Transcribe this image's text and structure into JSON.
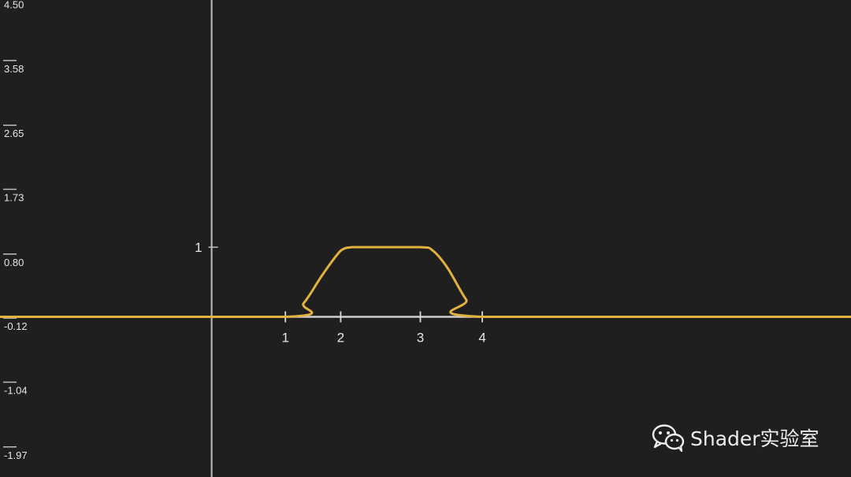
{
  "chart_data": {
    "type": "line",
    "title": "",
    "xlabel": "",
    "ylabel": "",
    "y_tick_labels": [
      "4.50",
      "3.58",
      "2.65",
      "1.73",
      "0.80",
      "-0.12",
      "-1.04",
      "-1.97"
    ],
    "y_tick_values": [
      4.5,
      3.58,
      2.65,
      1.73,
      0.8,
      -0.12,
      -1.04,
      -1.97
    ],
    "inner_y_tick_label": "1",
    "inner_y_tick_value": 1,
    "x_tick_labels": [
      "1",
      "2",
      "3",
      "4"
    ],
    "x_tick_values": [
      1,
      1.75,
      2.83,
      3.67
    ],
    "xlim": [
      -2.87,
      8.67
    ],
    "ylim": [
      -2.3,
      4.55
    ],
    "series": [
      {
        "color": "#e2b23e",
        "x": [
          -2.87,
          1.0,
          1.25,
          1.5,
          1.75,
          1.9,
          2.1,
          2.83,
          3.0,
          3.2,
          3.45,
          3.67,
          8.67
        ],
        "y": [
          0,
          0,
          0.2,
          0.6,
          0.95,
          1,
          1,
          1,
          0.95,
          0.7,
          0.25,
          0,
          0
        ]
      }
    ],
    "grid": false
  },
  "colors": {
    "background": "#1f1f1f",
    "axis": "#bfbfbf",
    "curve": "#e2b23e",
    "segment": "#cfcfcf"
  },
  "watermark": {
    "icon": "wechat-icon",
    "text": "Shader实验室"
  }
}
